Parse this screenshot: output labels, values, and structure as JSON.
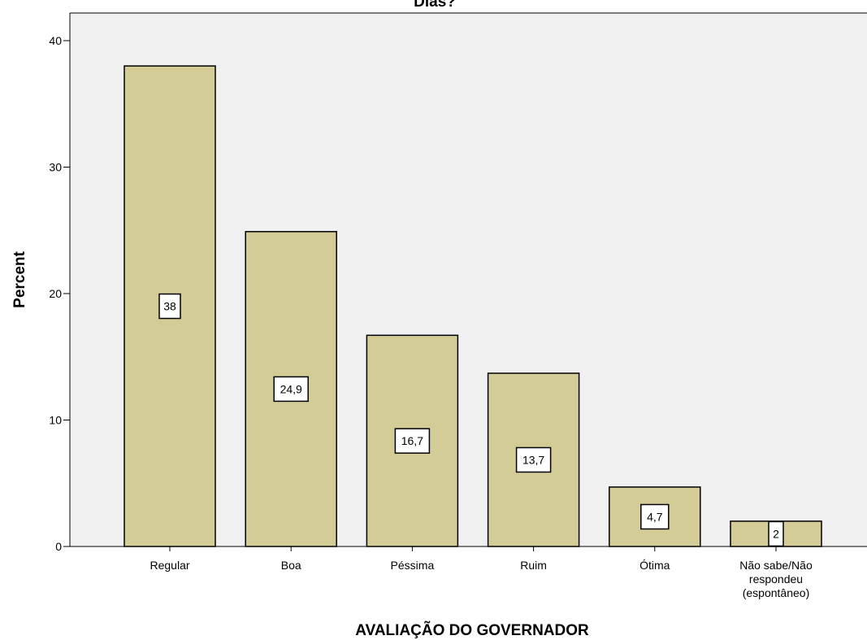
{
  "chart_data": {
    "type": "bar",
    "title": "Dias?",
    "xlabel": "AVALIAÇÃO DO GOVERNADOR",
    "ylabel": "Percent",
    "ylim": [
      0,
      40
    ],
    "yticks": [
      0,
      10,
      20,
      30,
      40
    ],
    "grid": false,
    "legend": "none",
    "categories": [
      [
        "Regular"
      ],
      [
        "Boa"
      ],
      [
        "Péssima"
      ],
      [
        "Ruim"
      ],
      [
        "Ótima"
      ],
      [
        "Não sabe/Não",
        "respondeu",
        "(espontâneo)"
      ]
    ],
    "values": [
      38,
      24.9,
      16.7,
      13.7,
      4.7,
      2
    ],
    "value_labels": [
      "38",
      "24,9",
      "16,7",
      "13,7",
      "4,7",
      "2"
    ],
    "colors": {
      "bar_fill": "#d4cc96",
      "bar_stroke": "#000000",
      "plot_background": "#f0f0f0"
    }
  }
}
